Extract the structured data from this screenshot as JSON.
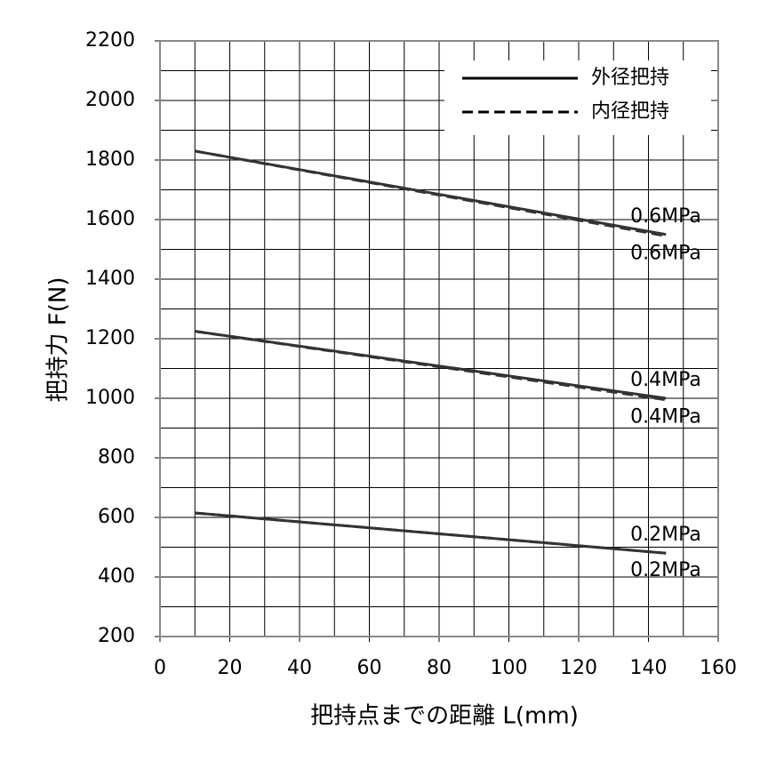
{
  "chart_data": {
    "type": "line",
    "xlabel": "把持点までの距離 L(mm)",
    "ylabel": "把持力 F(N)",
    "xlim": [
      0,
      160
    ],
    "xticks": [
      0,
      20,
      40,
      60,
      80,
      100,
      120,
      140,
      160
    ],
    "ylim": [
      200,
      2200
    ],
    "yticks": [
      200,
      400,
      600,
      800,
      1000,
      1200,
      1400,
      1600,
      1800,
      2000,
      2200
    ],
    "grid": true,
    "legend": "upper right",
    "x": [
      10,
      145
    ],
    "series": [
      {
        "name": "外径把持",
        "color": "#333333",
        "dash": "solid",
        "lines": [
          {
            "label": "0.6MPa",
            "values": [
              1830,
              1550
            ]
          },
          {
            "label": "0.4MPa",
            "values": [
              1225,
              1000
            ]
          },
          {
            "label": "0.2MPa",
            "values": [
              615,
              480
            ]
          }
        ]
      },
      {
        "name": "内径把持",
        "color": "#333333",
        "dash": "dashed",
        "lines": [
          {
            "label": "0.6MPa",
            "values": [
              1830,
              1545
            ]
          },
          {
            "label": "0.4MPa",
            "values": [
              1225,
              995
            ]
          },
          {
            "label": "0.2MPa",
            "values": [
              615,
              480
            ]
          }
        ]
      }
    ]
  }
}
